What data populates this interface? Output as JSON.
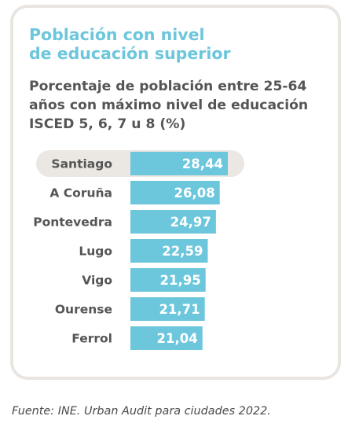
{
  "chart_data": {
    "type": "bar",
    "orientation": "horizontal",
    "title": "Población con nivel de educación superior",
    "title_lines": [
      "Población con nivel",
      "de educación superior"
    ],
    "subtitle": "Porcentaje de población entre 25-64 años con máximo nivel de educación ISCED 5, 6, 7 u 8 (%)",
    "subtitle_lines": [
      "Porcentaje de población entre 25-64",
      "años con máximo nivel de educación",
      "ISCED 5, 6, 7 u 8 (%)"
    ],
    "categories": [
      "Santiago",
      "A Coruña",
      "Pontevedra",
      "Lugo",
      "Vigo",
      "Ourense",
      "Ferrol"
    ],
    "values": [
      28.44,
      26.08,
      24.97,
      22.59,
      21.95,
      21.71,
      21.04
    ],
    "value_labels": [
      "28,44",
      "26,08",
      "24,97",
      "22,59",
      "21,95",
      "21,71",
      "21,04"
    ],
    "highlighted_category": "Santiago",
    "xlim": [
      0,
      28.44
    ],
    "grid": false,
    "legend": "none",
    "colors": {
      "bar": "#6cc6dc",
      "highlight": "#ebe7e2",
      "title": "#6cc6dc",
      "text": "#555555",
      "value_label": "#ffffff",
      "card_border": "#e9e6e1"
    }
  },
  "source": "Fuente: INE. Urban Audit para ciudades 2022."
}
